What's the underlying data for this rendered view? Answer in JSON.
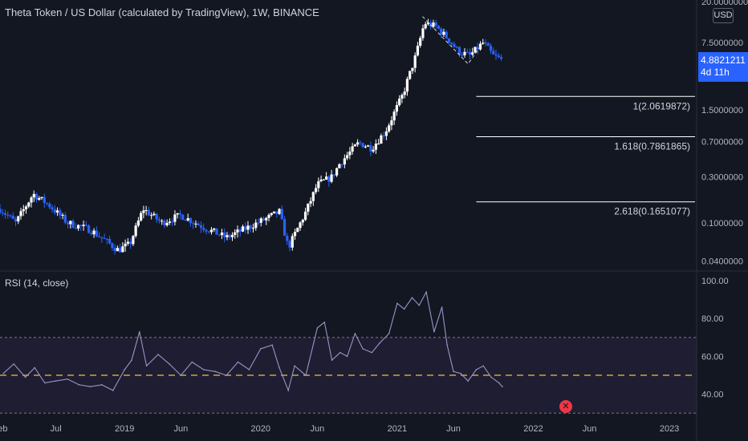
{
  "header": {
    "title": "Theta Token / US Dollar (calculated by TradingView), 1W, BINANCE",
    "currency": "USD"
  },
  "price_label": {
    "price": "4.8821211",
    "countdown": "4d 11h"
  },
  "rsi_panel": {
    "title": "RSI (14, close)"
  },
  "colors": {
    "background": "#131722",
    "up_candle": "#ffffff",
    "down_candle": "#2962ff",
    "rsi_line": "#9b94c8",
    "rsi_band": "#7e57c2",
    "rsi_midline": "#c9a83c",
    "fib_line": "#ffffff",
    "alert": "#f23645"
  },
  "icons": {
    "alert": "alert-x-icon"
  },
  "chart_data": [
    {
      "type": "candlestick",
      "title": "Theta Token / US Dollar (calculated by TradingView), 1W, BINANCE",
      "yscale": "log",
      "ylim": [
        0.034,
        20
      ],
      "xlim": [
        "2018-02-01",
        "2023-03-15"
      ],
      "y_tick_labels": [
        "20.0000000",
        "7.5000000",
        "1.5000000",
        "0.7000000",
        "0.3000000",
        "0.1000000",
        "0.0400000"
      ],
      "y_tick_values": [
        20,
        7.5,
        1.5,
        0.7,
        0.3,
        0.1,
        0.04
      ],
      "x_tick_labels": [
        "Feb",
        "Jul",
        "2019",
        "Jun",
        "2020",
        "Jun",
        "2021",
        "Jun",
        "2022",
        "Jun",
        "2023"
      ],
      "x_tick_dates": [
        "2018-02-01",
        "2018-07-01",
        "2019-01-01",
        "2019-06-01",
        "2020-01-01",
        "2020-06-01",
        "2021-01-01",
        "2021-06-01",
        "2022-01-01",
        "2022-06-01",
        "2023-01-01"
      ],
      "last_price": 4.8821211,
      "trend_waypoints": [
        [
          "2018-02-01",
          0.14
        ],
        [
          "2018-03-15",
          0.1
        ],
        [
          "2018-05-01",
          0.2
        ],
        [
          "2018-06-15",
          0.15
        ],
        [
          "2018-08-01",
          0.1
        ],
        [
          "2018-10-01",
          0.085
        ],
        [
          "2018-12-15",
          0.052
        ],
        [
          "2019-01-15",
          0.06
        ],
        [
          "2019-02-20",
          0.14
        ],
        [
          "2019-04-10",
          0.1
        ],
        [
          "2019-06-01",
          0.12
        ],
        [
          "2019-08-01",
          0.09
        ],
        [
          "2019-10-01",
          0.07
        ],
        [
          "2020-01-15",
          0.11
        ],
        [
          "2020-02-20",
          0.13
        ],
        [
          "2020-03-15",
          0.055
        ],
        [
          "2020-05-01",
          0.13
        ],
        [
          "2020-06-01",
          0.25
        ],
        [
          "2020-07-10",
          0.3
        ],
        [
          "2020-08-01",
          0.42
        ],
        [
          "2020-09-20",
          0.68
        ],
        [
          "2020-10-25",
          0.6
        ],
        [
          "2020-12-01",
          0.9
        ],
        [
          "2021-01-15",
          2.1
        ],
        [
          "2021-02-20",
          5.5
        ],
        [
          "2021-03-15",
          12
        ],
        [
          "2021-04-15",
          11
        ],
        [
          "2021-05-20",
          8
        ],
        [
          "2021-06-15",
          6
        ],
        [
          "2021-07-15",
          5.5
        ],
        [
          "2021-08-20",
          7.5
        ],
        [
          "2021-09-15",
          5.5
        ],
        [
          "2021-10-10",
          4.9
        ]
      ],
      "fibonacci_levels": [
        {
          "ratio": "1",
          "value": 2.0619872,
          "label": "1(2.0619872)"
        },
        {
          "ratio": "1.618",
          "value": 0.7861865,
          "label": "1.618(0.7861865)"
        },
        {
          "ratio": "2.618",
          "value": 0.1651077,
          "label": "2.618(0.1651077)"
        }
      ]
    },
    {
      "type": "line",
      "title": "RSI (14, close)",
      "ylim": [
        28,
        100
      ],
      "y_tick_labels": [
        "100.00",
        "80.00",
        "60.00",
        "40.00"
      ],
      "y_tick_values": [
        100,
        80,
        60,
        40
      ],
      "bands": {
        "upper": 70,
        "middle": 50,
        "lower": 30
      },
      "series": [
        {
          "x": [
            "2018-02-10",
            "2018-03-10",
            "2018-04-10",
            "2018-05-05",
            "2018-06-01",
            "2018-07-01",
            "2018-08-01",
            "2018-09-01",
            "2018-10-01",
            "2018-11-01",
            "2018-12-01",
            "2019-01-01",
            "2019-01-20",
            "2019-02-10",
            "2019-03-01",
            "2019-04-01",
            "2019-05-01",
            "2019-06-01",
            "2019-07-01",
            "2019-08-01",
            "2019-09-01",
            "2019-10-01",
            "2019-11-01",
            "2019-12-01",
            "2020-01-01",
            "2020-02-01",
            "2020-02-20",
            "2020-03-15",
            "2020-04-01",
            "2020-05-01",
            "2020-06-01",
            "2020-06-20",
            "2020-07-10",
            "2020-08-01",
            "2020-08-20",
            "2020-09-10",
            "2020-10-01",
            "2020-10-25",
            "2020-11-15",
            "2020-12-10",
            "2021-01-01",
            "2021-01-20",
            "2021-02-10",
            "2021-03-01",
            "2021-03-20",
            "2021-04-10",
            "2021-05-01",
            "2021-05-15",
            "2021-06-01",
            "2021-06-20",
            "2021-07-10",
            "2021-08-01",
            "2021-08-20",
            "2021-09-10",
            "2021-10-01",
            "2021-10-10"
          ],
          "y": [
            51,
            56,
            49,
            54,
            46,
            47,
            48,
            45,
            44,
            45,
            42,
            53,
            58,
            73,
            55,
            61,
            56,
            50,
            57,
            53,
            52,
            50,
            57,
            53,
            64,
            66,
            54,
            42,
            55,
            50,
            75,
            78,
            58,
            62,
            60,
            72,
            64,
            62,
            67,
            72,
            88,
            85,
            91,
            87,
            94,
            73,
            86,
            66,
            52,
            51,
            47,
            53,
            55,
            49,
            46,
            44
          ]
        }
      ]
    }
  ]
}
